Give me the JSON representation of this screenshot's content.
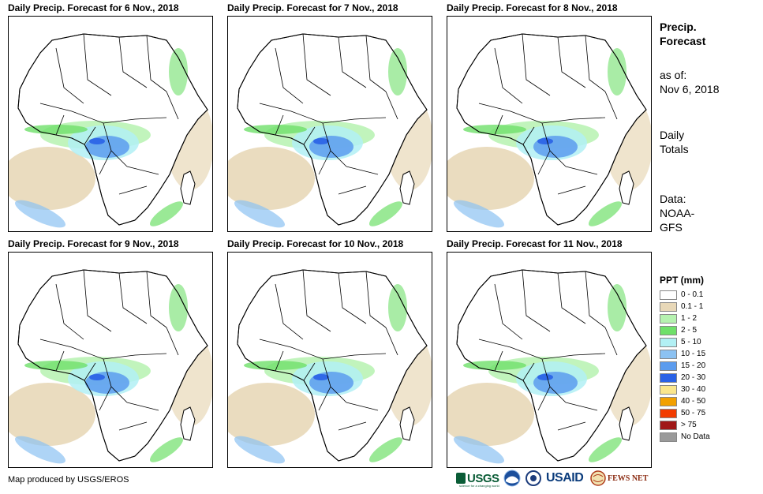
{
  "panels": [
    {
      "title": "Daily Precip. Forecast for 6 Nov., 2018"
    },
    {
      "title": "Daily Precip. Forecast for 7 Nov., 2018"
    },
    {
      "title": "Daily Precip. Forecast for 8 Nov., 2018"
    },
    {
      "title": "Daily Precip. Forecast for 9 Nov., 2018"
    },
    {
      "title": "Daily Precip. Forecast for 10 Nov., 2018"
    },
    {
      "title": "Daily Precip. Forecast for 11 Nov., 2018"
    }
  ],
  "sidebar": {
    "heading_line1": "Precip.",
    "heading_line2": "Forecast",
    "asof_line1": "as of:",
    "asof_line2": "Nov 6, 2018",
    "type_line1": "Daily",
    "type_line2": "Totals",
    "source_line1": "Data:",
    "source_line2": "NOAA-",
    "source_line3": "GFS"
  },
  "legend": {
    "title": "PPT (mm)",
    "items": [
      {
        "label": "0 - 0.1",
        "color": "#ffffff"
      },
      {
        "label": "0.1 - 1",
        "color": "#e8d8b8"
      },
      {
        "label": "1 - 2",
        "color": "#b6f2b0"
      },
      {
        "label": "2 - 5",
        "color": "#6fe06a"
      },
      {
        "label": "5 - 10",
        "color": "#b2f0f4"
      },
      {
        "label": "10 - 15",
        "color": "#8cc2f2"
      },
      {
        "label": "15 - 20",
        "color": "#5c9cee"
      },
      {
        "label": "20 - 30",
        "color": "#2a62e6"
      },
      {
        "label": "30 - 40",
        "color": "#fae68c"
      },
      {
        "label": "40 - 50",
        "color": "#f2a000"
      },
      {
        "label": "50 - 75",
        "color": "#f23c00"
      },
      {
        "label": "> 75",
        "color": "#a01818"
      },
      {
        "label": "No Data",
        "color": "#9a9a9a"
      }
    ]
  },
  "credit": "Map produced by USGS/EROS",
  "logos": {
    "usgs": "USGS",
    "usgs_tagline": "science for a changing world",
    "usaid": "USAID",
    "fewsnet": "FEWS NET"
  }
}
